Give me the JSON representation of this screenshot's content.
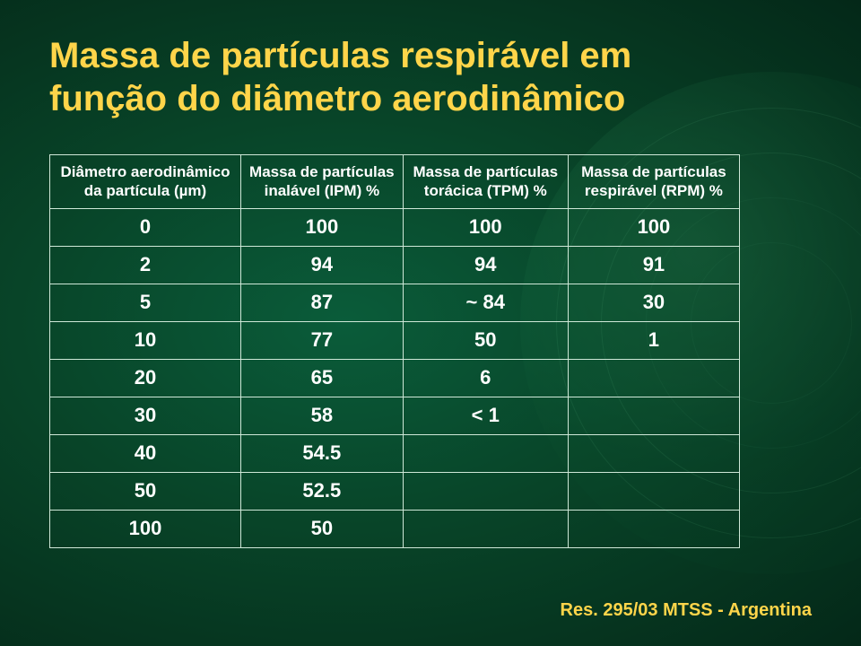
{
  "title_line1": "Massa de partículas respirável em",
  "title_line2": "função do diâmetro aerodinâmico",
  "table": {
    "columns": [
      "Diâmetro aerodinâmico da partícula (µm)",
      "Massa de partículas inalável (IPM) %",
      "Massa de partículas torácica (TPM) %",
      "Massa de partículas respirável (RPM) %"
    ],
    "rows": [
      [
        "0",
        "100",
        "100",
        "100"
      ],
      [
        "2",
        "94",
        "94",
        "91"
      ],
      [
        "5",
        "87",
        "~ 84",
        "30"
      ],
      [
        "10",
        "77",
        "50",
        "1"
      ],
      [
        "20",
        "65",
        "6",
        ""
      ],
      [
        "30",
        "58",
        "< 1",
        ""
      ],
      [
        "40",
        "54.5",
        "",
        ""
      ],
      [
        "50",
        "52.5",
        "",
        ""
      ],
      [
        "100",
        "50",
        "",
        ""
      ]
    ],
    "column_widths_pct": [
      25,
      25,
      25,
      25
    ],
    "header_fontsize": 17,
    "cell_fontsize": 22,
    "border_color": "#cfe8d8",
    "text_color": "#ffffff"
  },
  "footer": "Res. 295/03 MTSS - Argentina",
  "colors": {
    "title": "#ffd54a",
    "footer": "#ffd54a",
    "bg_inner": "#0a5c3a",
    "bg_mid": "#084428",
    "bg_outer": "#042818"
  }
}
